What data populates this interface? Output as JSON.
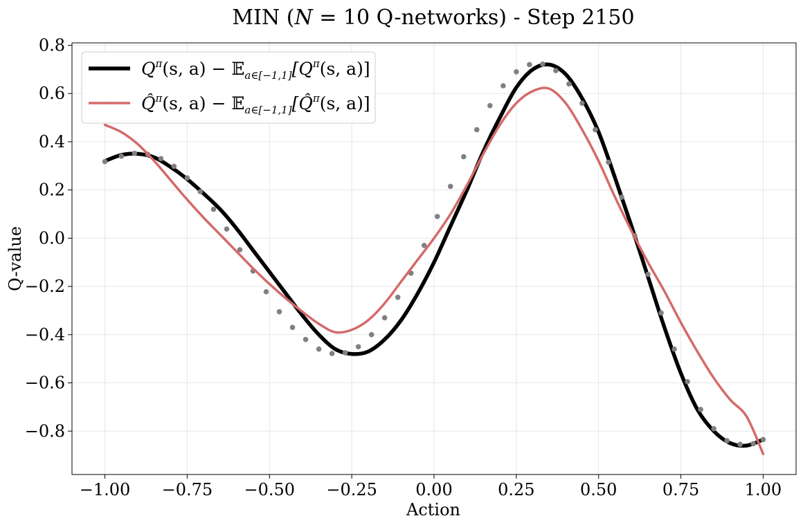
{
  "chart_data": {
    "type": "line",
    "title": "MIN (N = 10 Q-networks) - Step 2150",
    "title_parts": {
      "prefix": "MIN (",
      "var": "N",
      "rest": " = 10 Q-networks) - Step 2150"
    },
    "xlabel": "Action",
    "ylabel": "Q-value",
    "xlim": [
      -1.1,
      1.1
    ],
    "ylim": [
      -0.98,
      0.81
    ],
    "xticks": [
      -1.0,
      -0.75,
      -0.5,
      -0.25,
      0.0,
      0.25,
      0.5,
      0.75,
      1.0
    ],
    "xtick_labels": [
      "−1.00",
      "−0.75",
      "−0.50",
      "−0.25",
      "0.00",
      "0.25",
      "0.50",
      "0.75",
      "1.00"
    ],
    "yticks": [
      -0.8,
      -0.6,
      -0.4,
      -0.2,
      0.0,
      0.2,
      0.4,
      0.6,
      0.8
    ],
    "ytick_labels": [
      "−0.8",
      "−0.6",
      "−0.4",
      "−0.2",
      "0.0",
      "0.2",
      "0.4",
      "0.6",
      "0.8"
    ],
    "grid": true,
    "legend_position": "upper-left",
    "series": [
      {
        "name": "Q^π(s,a) − E_{a∈[−1,1]}[Q^π(s,a)]",
        "legend_parts": [
          "Q",
          "π",
          "(s, a) − 𝔼",
          "a∈[−1,1]",
          "[Q",
          "π",
          "(s, a)]"
        ],
        "color": "#000000",
        "marker_color": "#808080",
        "x": [
          -1.0,
          -0.95,
          -0.9,
          -0.85,
          -0.8,
          -0.75,
          -0.7,
          -0.65,
          -0.6,
          -0.55,
          -0.5,
          -0.45,
          -0.4,
          -0.35,
          -0.3,
          -0.25,
          -0.2,
          -0.15,
          -0.1,
          -0.05,
          0.0,
          0.05,
          0.1,
          0.15,
          0.2,
          0.25,
          0.3,
          0.35,
          0.4,
          0.45,
          0.5,
          0.55,
          0.6,
          0.65,
          0.7,
          0.75,
          0.8,
          0.85,
          0.9,
          0.95,
          1.0
        ],
        "values": [
          0.32,
          0.345,
          0.35,
          0.335,
          0.295,
          0.245,
          0.185,
          0.12,
          0.04,
          -0.05,
          -0.14,
          -0.23,
          -0.32,
          -0.4,
          -0.46,
          -0.48,
          -0.47,
          -0.42,
          -0.34,
          -0.23,
          -0.1,
          0.05,
          0.2,
          0.36,
          0.5,
          0.625,
          0.7,
          0.72,
          0.68,
          0.58,
          0.44,
          0.25,
          0.05,
          -0.16,
          -0.37,
          -0.56,
          -0.71,
          -0.8,
          -0.85,
          -0.86,
          -0.835
        ],
        "marker_x": [
          -1.0,
          -0.95,
          -0.91,
          -0.87,
          -0.83,
          -0.79,
          -0.75,
          -0.71,
          -0.67,
          -0.63,
          -0.59,
          -0.55,
          -0.51,
          -0.47,
          -0.43,
          -0.39,
          -0.35,
          -0.31,
          -0.27,
          -0.23,
          -0.19,
          -0.15,
          -0.11,
          -0.07,
          -0.03,
          0.01,
          0.05,
          0.09,
          0.13,
          0.17,
          0.21,
          0.25,
          0.29,
          0.33,
          0.37,
          0.41,
          0.45,
          0.49,
          0.53,
          0.57,
          0.61,
          0.65,
          0.69,
          0.73,
          0.77,
          0.81,
          0.85,
          0.89,
          0.93,
          0.97,
          1.0
        ],
        "marker_values": [
          0.318,
          0.34,
          0.352,
          0.348,
          0.33,
          0.298,
          0.25,
          0.193,
          0.12,
          0.038,
          -0.048,
          -0.136,
          -0.222,
          -0.305,
          -0.37,
          -0.42,
          -0.46,
          -0.478,
          -0.475,
          -0.45,
          -0.4,
          -0.33,
          -0.245,
          -0.145,
          -0.03,
          0.09,
          0.215,
          0.338,
          0.45,
          0.55,
          0.632,
          0.69,
          0.72,
          0.722,
          0.695,
          0.64,
          0.56,
          0.45,
          0.315,
          0.17,
          0.01,
          -0.15,
          -0.31,
          -0.46,
          -0.595,
          -0.71,
          -0.79,
          -0.84,
          -0.855,
          -0.852,
          -0.835
        ]
      },
      {
        "name": "Q̂^π(s,a) − E_{a∈[−1,1]}[Q̂^π(s,a)]",
        "legend_parts": [
          "Q̂",
          "π",
          "(s, a) − 𝔼",
          "a∈[−1,1]",
          "[Q̂",
          "π",
          "(s, a)]"
        ],
        "color": "#d46a6a",
        "x": [
          -1.0,
          -0.95,
          -0.9,
          -0.85,
          -0.8,
          -0.75,
          -0.7,
          -0.65,
          -0.6,
          -0.55,
          -0.5,
          -0.45,
          -0.4,
          -0.35,
          -0.3,
          -0.25,
          -0.2,
          -0.15,
          -0.1,
          -0.05,
          0.0,
          0.05,
          0.1,
          0.15,
          0.2,
          0.25,
          0.3,
          0.35,
          0.4,
          0.45,
          0.5,
          0.55,
          0.6,
          0.65,
          0.7,
          0.75,
          0.8,
          0.85,
          0.9,
          0.95,
          1.0
        ],
        "values": [
          0.47,
          0.44,
          0.39,
          0.32,
          0.24,
          0.16,
          0.085,
          0.015,
          -0.055,
          -0.125,
          -0.19,
          -0.25,
          -0.305,
          -0.355,
          -0.39,
          -0.38,
          -0.34,
          -0.27,
          -0.18,
          -0.09,
          0.0,
          0.1,
          0.22,
          0.35,
          0.47,
          0.56,
          0.61,
          0.62,
          0.56,
          0.45,
          0.32,
          0.17,
          0.03,
          -0.1,
          -0.22,
          -0.35,
          -0.47,
          -0.58,
          -0.67,
          -0.74,
          -0.895
        ]
      }
    ]
  }
}
